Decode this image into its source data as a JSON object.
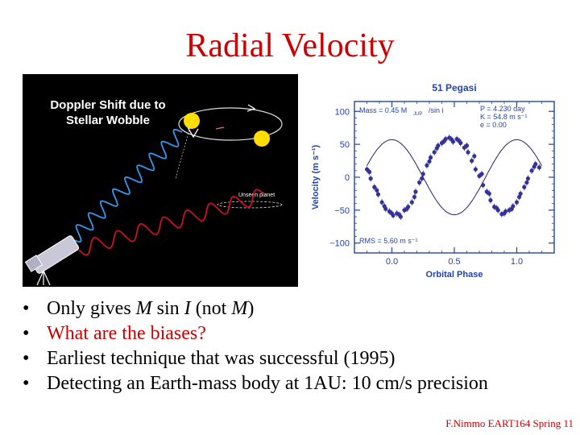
{
  "slide": {
    "title": "Radial Velocity",
    "footer": "F.Nimmo EART164 Spring 11",
    "bullets": [
      {
        "parts": [
          "Only gives ",
          "M",
          " sin ",
          "I",
          "  (not ",
          "M",
          ")"
        ],
        "italic": [
          false,
          true,
          false,
          true,
          false,
          true,
          false
        ],
        "color": "#000000"
      },
      {
        "parts": [
          "What are the biases?"
        ],
        "italic": [
          false
        ],
        "color": "#cc0000"
      },
      {
        "parts": [
          "Earliest technique that was successful (1995)"
        ],
        "italic": [
          false
        ],
        "color": "#000000"
      },
      {
        "parts": [
          "Detecting an Earth-mass body at 1AU: 10 cm/s precision"
        ],
        "italic": [
          false
        ],
        "color": "#000000"
      }
    ]
  },
  "left_figure": {
    "title_line1": "Doppler Shift due to",
    "title_line2": "Stellar Wobble",
    "label_unseen": "Unseen planet",
    "colors": {
      "background": "#000000",
      "blueshift": "#3399ee",
      "redshift": "#cc1122",
      "star": "#ffdd00"
    }
  },
  "chart_data": {
    "type": "scatter",
    "title": "51 Pegasi",
    "xlabel": "Orbital Phase",
    "ylabel": "Velocity  (m s⁻¹)",
    "xlim": [
      -0.3,
      1.3
    ],
    "ylim": [
      -115,
      115
    ],
    "xticks": [
      0.0,
      0.5,
      1.0
    ],
    "xtick_labels": [
      "0.0",
      "0.5",
      "1.0"
    ],
    "yticks": [
      -100,
      -50,
      0,
      50,
      100
    ],
    "ytick_labels": [
      "−100",
      "−50",
      "0",
      "50",
      "100"
    ],
    "annotations": {
      "mass": "Mass = 0.45 M",
      "mass_sub": "JUP",
      "mass_tail": " /sin i",
      "params": [
        "P = 4.230 day",
        "K = 54.8  m s⁻¹",
        "e = 0.00"
      ],
      "rms": "RMS = 5.60  m s⁻¹"
    },
    "series": [
      {
        "marker_color": "#333399",
        "x": [
          -0.2,
          -0.17,
          -0.14,
          -0.11,
          -0.08,
          -0.05,
          -0.02,
          0.01,
          0.04,
          0.07,
          0.1,
          0.13,
          0.16,
          0.19,
          0.22,
          0.25,
          0.28,
          0.31,
          0.34,
          0.37,
          0.4,
          0.43,
          0.46,
          0.49,
          0.52,
          0.55,
          0.58,
          0.61,
          0.64,
          0.67,
          0.7,
          0.73,
          0.76,
          0.79,
          0.82,
          0.85,
          0.88,
          0.91,
          0.94,
          0.97,
          1.0,
          1.03,
          1.06,
          1.09,
          1.12,
          1.15,
          1.18,
          -0.18,
          -0.12,
          -0.06,
          0.0,
          0.06,
          0.12,
          0.18,
          0.24,
          0.3,
          0.36,
          0.42,
          0.48,
          0.54,
          0.6,
          0.66,
          0.72,
          0.78,
          0.84,
          0.9,
          0.96,
          1.02,
          1.08,
          1.14
        ],
        "y": [
          12,
          -2,
          -15,
          -26,
          -38,
          -48,
          -52,
          -58,
          -55,
          -60,
          -50,
          -45,
          -38,
          -22,
          -8,
          5,
          18,
          30,
          38,
          48,
          52,
          58,
          60,
          54,
          58,
          52,
          45,
          38,
          25,
          12,
          2,
          -12,
          -22,
          -35,
          -45,
          -50,
          -56,
          -52,
          -50,
          -44,
          -38,
          -25,
          -15,
          -2,
          10,
          20,
          15,
          8,
          -20,
          -44,
          -55,
          -57,
          -48,
          -30,
          -2,
          24,
          44,
          55,
          57,
          55,
          48,
          32,
          5,
          -25,
          -47,
          -55,
          -48,
          -30,
          -8,
          16
        ]
      }
    ],
    "fit": "sinusoid"
  }
}
